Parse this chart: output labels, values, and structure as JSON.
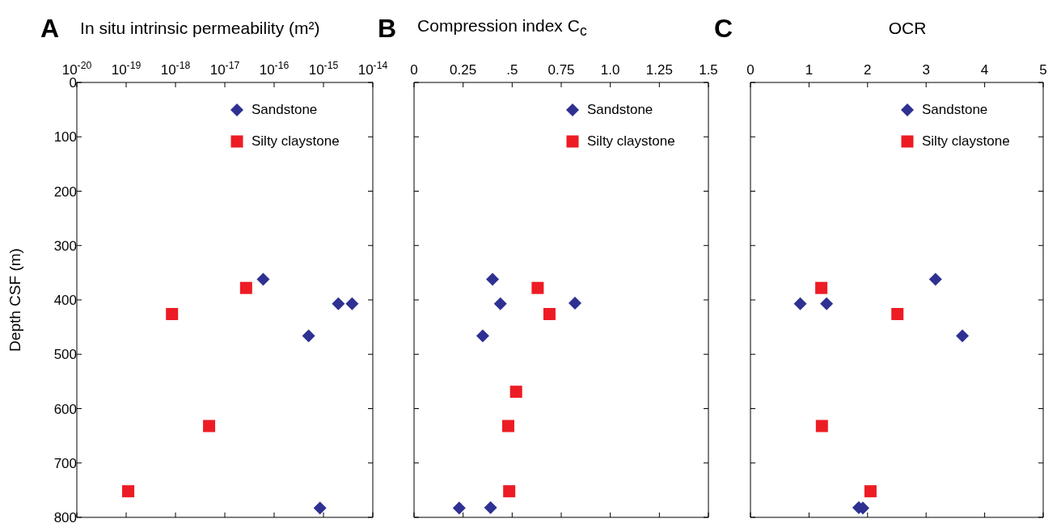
{
  "chart_data": [
    {
      "type": "scatter",
      "title": "In situ intrinsic permeability (m²)",
      "annotations": [
        "A"
      ],
      "ylabel": "Depth CSF (m)",
      "log": "x",
      "xlim": [
        1e-20,
        1e-14
      ],
      "xticks": [
        {
          "value": 1e-20,
          "label": "10$^{-20}$"
        },
        {
          "value": 1e-19,
          "label": "10$^{-19}$"
        },
        {
          "value": 1e-18,
          "label": "10$^{-18}$"
        },
        {
          "value": 1e-17,
          "label": "10$^{-17}$"
        },
        {
          "value": 1e-16,
          "label": "10$^{-16}$"
        },
        {
          "value": 1e-15,
          "label": "10$^{-15}$"
        },
        {
          "value": 1e-14,
          "label": "10$^{-14}$"
        }
      ],
      "ylim": [
        800,
        0
      ],
      "yticks": [
        0,
        100,
        200,
        300,
        400,
        500,
        600,
        700,
        800
      ],
      "legend": "top right",
      "series": [
        {
          "name": "Sandstone",
          "color": "#2e3192",
          "marker": "diamond",
          "x": [
            6e-17,
            2e-15,
            3.8e-15,
            5e-16,
            8.5e-16
          ],
          "values": [
            362,
            407,
            407,
            466,
            783
          ]
        },
        {
          "name": "Silty claystone",
          "color": "#ed1c24",
          "marker": "square",
          "x": [
            2.7e-17,
            8.5e-19,
            4.8e-18,
            1.1e-19
          ],
          "values": [
            378,
            426,
            632,
            752
          ]
        }
      ]
    },
    {
      "type": "scatter",
      "title": "Compression index C$_{c}$",
      "annotations": [
        "B"
      ],
      "xlim": [
        0,
        1.5
      ],
      "xticks": [
        0,
        0.25,
        {
          "value": 0.5,
          "label": ".5"
        },
        0.75,
        {
          "value": 1,
          "label": "1.0"
        },
        1.25,
        1.5
      ],
      "ylim": [
        800,
        0
      ],
      "yticks": [
        0,
        100,
        200,
        300,
        400,
        500,
        600,
        700,
        800
      ],
      "tick_labels": "x",
      "legend": "top right",
      "series": [
        {
          "name": "Sandstone",
          "color": "#2e3192",
          "marker": "diamond",
          "x": [
            0.4,
            0.44,
            0.82,
            0.35,
            0.23,
            0.39
          ],
          "values": [
            362,
            407,
            406,
            466,
            783,
            782
          ]
        },
        {
          "name": "Silty claystone",
          "color": "#ed1c24",
          "marker": "square",
          "x": [
            0.63,
            0.69,
            0.52,
            0.48,
            0.485
          ],
          "values": [
            378,
            426,
            569,
            632,
            752
          ]
        }
      ]
    },
    {
      "type": "scatter",
      "title": "OCR",
      "annotations": [
        "C"
      ],
      "xlim": [
        0,
        5
      ],
      "xticks": [
        0,
        1,
        2,
        3,
        4,
        5
      ],
      "ylim": [
        800,
        0
      ],
      "yticks": [
        0,
        100,
        200,
        300,
        400,
        500,
        600,
        700,
        800
      ],
      "tick_labels": "x",
      "legend": "top right",
      "series": [
        {
          "name": "Sandstone",
          "color": "#2e3192",
          "marker": "diamond",
          "x": [
            3.16,
            0.85,
            1.3,
            3.62,
            1.85,
            1.92
          ],
          "values": [
            362,
            407,
            407,
            466,
            782,
            783
          ]
        },
        {
          "name": "Silty claystone",
          "color": "#ed1c24",
          "marker": "square",
          "x": [
            1.21,
            2.51,
            1.22,
            2.05
          ],
          "values": [
            378,
            426,
            632,
            752
          ]
        }
      ]
    }
  ]
}
